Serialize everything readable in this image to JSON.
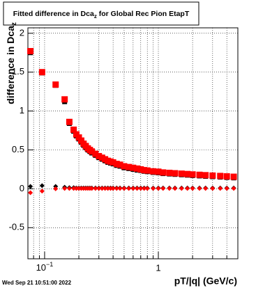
{
  "chart_data": {
    "type": "scatter",
    "title": {
      "text": "Fitted difference in Dca",
      "sub": "z",
      "rest": "  for Global Rec Pion EtapT"
    },
    "ylabel": {
      "text": "difference in Dca",
      "sub": "z"
    },
    "xlabel": "pT/|q| (GeV/c)",
    "footer": "Wed Sep 21 10:51:00 2022",
    "xlog": true,
    "grid": true,
    "xlim": [
      0.0713,
      5.0
    ],
    "ylim": [
      -0.9,
      2.07
    ],
    "xticks": [
      {
        "value": 0.1,
        "label": "10",
        "superscript": "−1"
      },
      1
    ],
    "xminor_ticks": [
      0.08,
      0.09,
      0.2,
      0.3,
      0.4,
      0.5,
      0.6,
      0.7,
      0.8,
      0.9,
      2,
      3,
      4
    ],
    "yticks": [
      -0.5,
      0,
      0.5,
      1,
      1.5,
      2
    ],
    "x": [
      0.075,
      0.095,
      0.125,
      0.15,
      0.165,
      0.18,
      0.19,
      0.2,
      0.21,
      0.22,
      0.23,
      0.24,
      0.25,
      0.26,
      0.28,
      0.3,
      0.32,
      0.34,
      0.36,
      0.38,
      0.4,
      0.43,
      0.46,
      0.5,
      0.55,
      0.6,
      0.65,
      0.7,
      0.75,
      0.8,
      0.9,
      1.0,
      1.1,
      1.25,
      1.4,
      1.6,
      1.8,
      2.0,
      2.3,
      2.6,
      3.0,
      3.5,
      4.0,
      4.6
    ],
    "series": [
      {
        "color": "#000000",
        "marker": "square",
        "values": [
          1.75,
          1.49,
          1.33,
          1.12,
          0.84,
          0.74,
          0.68,
          0.64,
          0.6,
          0.56,
          0.53,
          0.5,
          0.48,
          0.46,
          0.43,
          0.4,
          0.38,
          0.36,
          0.34,
          0.33,
          0.32,
          0.3,
          0.29,
          0.27,
          0.26,
          0.25,
          0.24,
          0.235,
          0.225,
          0.22,
          0.21,
          0.205,
          0.195,
          0.19,
          0.185,
          0.18,
          0.175,
          0.17,
          0.165,
          0.16,
          0.155,
          0.15,
          0.145,
          0.14
        ]
      },
      {
        "color": "#ff0000",
        "marker": "square",
        "values": [
          1.77,
          1.5,
          1.34,
          1.15,
          0.86,
          0.76,
          0.7,
          0.66,
          0.62,
          0.58,
          0.55,
          0.52,
          0.5,
          0.48,
          0.45,
          0.42,
          0.4,
          0.38,
          0.36,
          0.35,
          0.34,
          0.32,
          0.31,
          0.29,
          0.28,
          0.27,
          0.26,
          0.25,
          0.24,
          0.235,
          0.225,
          0.22,
          0.21,
          0.205,
          0.2,
          0.195,
          0.19,
          0.185,
          0.18,
          0.175,
          0.17,
          0.165,
          0.16,
          0.155
        ]
      },
      {
        "color": "#000000",
        "marker": "diamond",
        "values": [
          0.03,
          0.04,
          0.03,
          0.02,
          0.015,
          0.015,
          0.01,
          0.01,
          0.01,
          0.01,
          0.01,
          0.01,
          0.01,
          0.01,
          0.01,
          0.01,
          0.01,
          0.01,
          0.01,
          0.01,
          0.01,
          0.01,
          0.01,
          0.01,
          0.01,
          0.01,
          0.01,
          0.01,
          0.01,
          0.01,
          0.01,
          0.01,
          0.01,
          0.01,
          0.01,
          0.01,
          0.01,
          0.01,
          0.01,
          0.01,
          0.01,
          0.01,
          0.01,
          0.01
        ]
      },
      {
        "color": "#ff0000",
        "marker": "diamond",
        "values": [
          -0.05,
          -0.03,
          0.0,
          0.005,
          0.005,
          0.005,
          0.005,
          0.005,
          0.005,
          0.005,
          0.005,
          0.005,
          0.005,
          0.005,
          0.005,
          0.005,
          0.005,
          0.005,
          0.005,
          0.005,
          0.005,
          0.005,
          0.005,
          0.005,
          0.005,
          0.005,
          0.005,
          0.005,
          0.005,
          0.005,
          0.005,
          0.005,
          0.005,
          0.005,
          0.005,
          0.005,
          0.005,
          0.005,
          0.005,
          0.005,
          0.005,
          0.005,
          0.005,
          0.005
        ]
      }
    ]
  }
}
